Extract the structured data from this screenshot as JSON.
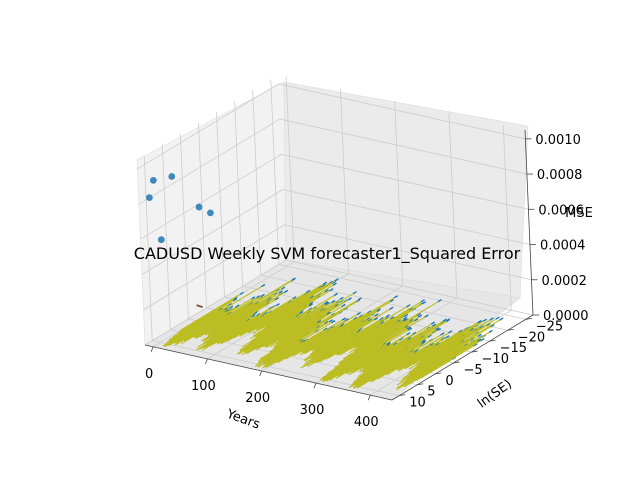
{
  "chart_data": {
    "type": "3d-scatter-surface",
    "title": "CADUSD Weekly SVM forecaster1_Squared Error",
    "xlabel": "Years",
    "ylabel": "ln(SE)",
    "zlabel": "MSE",
    "xlim": [
      -15,
      440
    ],
    "ylim": [
      -27,
      12
    ],
    "zlim": [
      0,
      0.00105
    ],
    "x_ticks": [
      "0",
      "100",
      "200",
      "300",
      "400"
    ],
    "y_ticks": [
      "−25",
      "−20",
      "−15",
      "−10",
      "−5",
      "0",
      "5",
      "10"
    ],
    "z_ticks": [
      "0.0000",
      "0.0002",
      "0.0004",
      "0.0006",
      "0.0008",
      "0.0010"
    ],
    "mse_points": [
      {
        "x": 0,
        "y": 10,
        "z": 0.00092,
        "color": "#1f77b4"
      },
      {
        "x": 0,
        "y": 5,
        "z": 0.00088,
        "color": "#1f77b4"
      },
      {
        "x": 5,
        "y": 12,
        "z": 0.00085,
        "color": "#1f77b4"
      },
      {
        "x": 0,
        "y": -2,
        "z": 0.00062,
        "color": "#1f77b4"
      },
      {
        "x": 0,
        "y": -5,
        "z": 0.00055,
        "color": "#1f77b4"
      },
      {
        "x": 10,
        "y": 10,
        "z": 0.00059,
        "color": "#1f77b4"
      }
    ],
    "ln_se_series": {
      "start_x": 0,
      "end_x": 430,
      "y_mean": -1.5,
      "y_min": -26,
      "y_max": 11,
      "z": 0,
      "colors": [
        "#1f77b4",
        "#bcbd22"
      ]
    }
  }
}
